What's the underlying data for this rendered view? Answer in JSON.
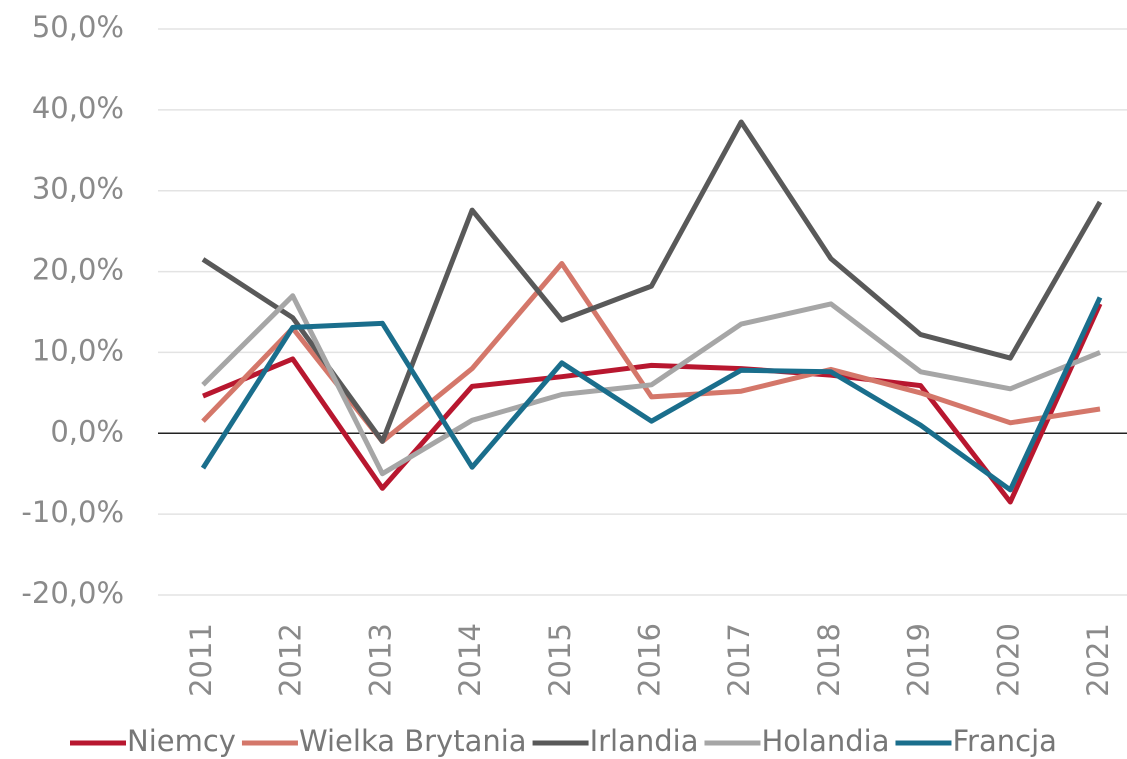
{
  "chart_data": {
    "type": "line",
    "categories": [
      "2011",
      "2012",
      "2013",
      "2014",
      "2015",
      "2016",
      "2017",
      "2018",
      "2019",
      "2020",
      "2021"
    ],
    "series": [
      {
        "name": "Niemcy",
        "color": "#b8172f",
        "values": [
          4.6,
          9.2,
          -6.8,
          5.8,
          7.0,
          8.4,
          8.0,
          7.2,
          5.9,
          -8.5,
          16.0
        ]
      },
      {
        "name": "Wielka Brytania",
        "color": "#d4776a",
        "values": [
          1.5,
          13.0,
          -1.0,
          8.0,
          21.0,
          4.5,
          5.2,
          7.9,
          5.0,
          1.3,
          3.0
        ]
      },
      {
        "name": "Irlandia",
        "color": "#595959",
        "values": [
          21.5,
          14.3,
          -1.0,
          27.6,
          14.0,
          18.2,
          38.5,
          21.6,
          12.2,
          9.3,
          28.6
        ]
      },
      {
        "name": "Holandia",
        "color": "#a6a6a6",
        "values": [
          6.0,
          17.0,
          -5.0,
          1.6,
          4.8,
          6.0,
          13.5,
          16.0,
          7.6,
          5.5,
          10.0
        ]
      },
      {
        "name": "Francja",
        "color": "#1a6e8c",
        "values": [
          -4.3,
          13.1,
          13.6,
          -4.2,
          8.7,
          1.5,
          7.8,
          7.6,
          1.0,
          -7.0,
          16.8
        ]
      }
    ],
    "ylim": [
      -20,
      50
    ],
    "yticks": [
      {
        "value": -20,
        "label": "-20,0%"
      },
      {
        "value": -10,
        "label": "-10,0%"
      },
      {
        "value": 0,
        "label": "0,0%"
      },
      {
        "value": 10,
        "label": "10,0%"
      },
      {
        "value": 20,
        "label": "20,0%"
      },
      {
        "value": 30,
        "label": "30,0%"
      },
      {
        "value": 40,
        "label": "40,0%"
      },
      {
        "value": 50,
        "label": "50,0%"
      }
    ],
    "grid": true,
    "legend": "bottom"
  }
}
